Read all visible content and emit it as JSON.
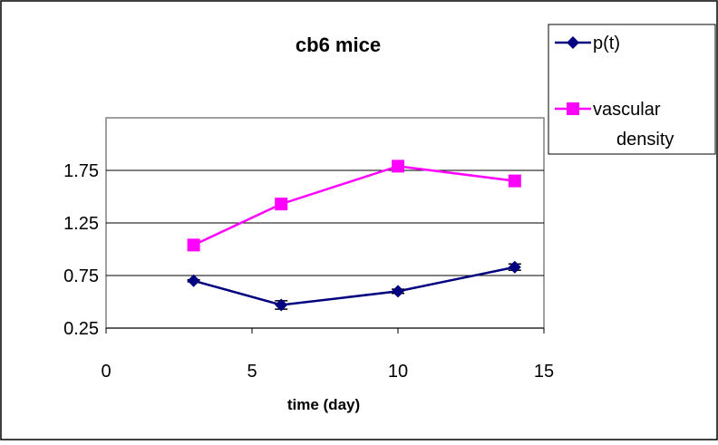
{
  "chart_data": {
    "type": "line",
    "title": "cb6 mice",
    "xlabel": "time (day)",
    "ylabel": "",
    "xlim": [
      0,
      15
    ],
    "ylim": [
      0.25,
      2.25
    ],
    "x_ticks": [
      "0",
      "5",
      "10",
      "15"
    ],
    "y_ticks": [
      "0.25",
      "0.75",
      "1.25",
      "1.75"
    ],
    "grid": "horizontal",
    "legend_position": "right",
    "series": [
      {
        "name": "p(t)",
        "color": "#000080",
        "marker": "diamond",
        "x": [
          3,
          6,
          10,
          14
        ],
        "values": [
          0.7,
          0.47,
          0.6,
          0.83
        ],
        "error": [
          0.01,
          0.04,
          0.02,
          0.03
        ]
      },
      {
        "name": "vascular density",
        "legend_lines": [
          "vascular",
          "density"
        ],
        "color": "#FF00FF",
        "marker": "square",
        "x": [
          3,
          6,
          10,
          14
        ],
        "values": [
          1.04,
          1.43,
          1.79,
          1.65
        ]
      }
    ]
  }
}
